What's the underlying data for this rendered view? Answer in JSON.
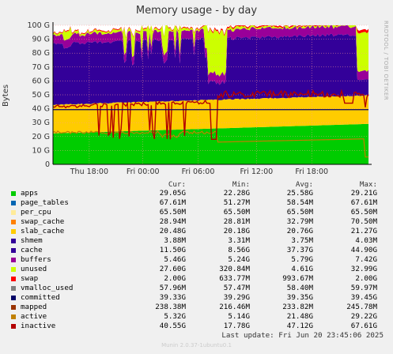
{
  "chart_data": {
    "type": "area",
    "title": "Memory usage - by day",
    "ylabel": "Bytes",
    "side_text": "RRDTOOL / TOBI OETIKER",
    "ylim": [
      0,
      100
    ],
    "yticks": [
      "0",
      "10 G",
      "20 G",
      "30 G",
      "40 G",
      "50 G",
      "60 G",
      "70 G",
      "80 G",
      "90 G",
      "100 G"
    ],
    "xticks": [
      "Thu 18:00",
      "Fri 00:00",
      "Fri 06:00",
      "Fri 12:00",
      "Fri 18:00"
    ],
    "columns": [
      "Cur:",
      "Min:",
      "Avg:",
      "Max:"
    ],
    "legend": [
      {
        "name": "apps",
        "color": "#00cc00",
        "cur": "29.05G",
        "min": "22.28G",
        "avg": "25.58G",
        "max": "29.21G"
      },
      {
        "name": "page_tables",
        "color": "#0066b3",
        "cur": "67.61M",
        "min": "51.27M",
        "avg": "58.54M",
        "max": "67.61M"
      },
      {
        "name": "per_cpu",
        "color": "#ffeb99",
        "cur": "65.50M",
        "min": "65.50M",
        "avg": "65.50M",
        "max": "65.50M"
      },
      {
        "name": "swap_cache",
        "color": "#ff8000",
        "cur": "28.94M",
        "min": "28.81M",
        "avg": "32.79M",
        "max": "70.50M"
      },
      {
        "name": "slab_cache",
        "color": "#ffcc00",
        "cur": "20.48G",
        "min": "20.18G",
        "avg": "20.76G",
        "max": "21.27G"
      },
      {
        "name": "shmem",
        "color": "#330099",
        "cur": "3.88M",
        "min": "3.31M",
        "avg": "3.75M",
        "max": "4.03M"
      },
      {
        "name": "cache",
        "color": "#330099",
        "cur": "11.50G",
        "min": "8.56G",
        "avg": "37.37G",
        "max": "44.90G"
      },
      {
        "name": "buffers",
        "color": "#990099",
        "cur": "5.46G",
        "min": "5.24G",
        "avg": "5.79G",
        "max": "7.42G"
      },
      {
        "name": "unused",
        "color": "#ccff00",
        "cur": "27.60G",
        "min": "320.84M",
        "avg": "4.61G",
        "max": "32.99G"
      },
      {
        "name": "swap",
        "color": "#ff0000",
        "cur": "2.00G",
        "min": "633.77M",
        "avg": "993.67M",
        "max": "2.00G"
      },
      {
        "name": "vmalloc_used",
        "color": "#808080",
        "cur": "57.96M",
        "min": "57.47M",
        "avg": "58.40M",
        "max": "59.97M"
      },
      {
        "name": "committed",
        "color": "#000066",
        "cur": "39.33G",
        "min": "39.29G",
        "avg": "39.35G",
        "max": "39.45G"
      },
      {
        "name": "mapped",
        "color": "#993300",
        "cur": "238.38M",
        "min": "216.46M",
        "avg": "233.82M",
        "max": "245.78M"
      },
      {
        "name": "active",
        "color": "#c08000",
        "cur": "5.32G",
        "min": "5.14G",
        "avg": "21.48G",
        "max": "29.22G"
      },
      {
        "name": "inactive",
        "color": "#b30000",
        "cur": "40.55G",
        "min": "17.78G",
        "avg": "47.12G",
        "max": "67.61G"
      }
    ]
  },
  "footer": {
    "last_update": "Last update: Fri Jun 20 23:45:06 2025",
    "munin": "Munin 2.0.37-1ubuntu0.1"
  }
}
